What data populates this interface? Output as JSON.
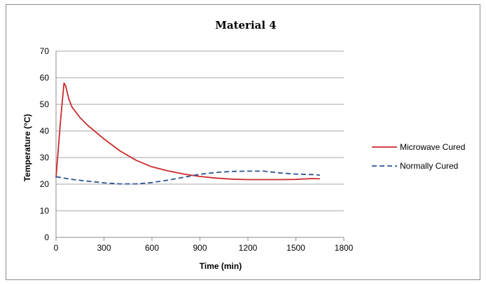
{
  "chart_data": {
    "type": "line",
    "title": "Material 4",
    "xlabel": "Time (min)",
    "ylabel": "Temperature (°C)",
    "xlim": [
      0,
      1800
    ],
    "ylim": [
      0,
      70
    ],
    "x_ticks": [
      0,
      300,
      600,
      900,
      1200,
      1500,
      1800
    ],
    "y_ticks": [
      0,
      10,
      20,
      30,
      40,
      50,
      60,
      70
    ],
    "grid": "horizontal",
    "legend_position": "right",
    "series": [
      {
        "name": "Microwave Cured",
        "color": "#cc2a2a",
        "style": "solid",
        "x": [
          0,
          30,
          50,
          60,
          80,
          100,
          150,
          200,
          300,
          400,
          500,
          600,
          700,
          800,
          900,
          1000,
          1100,
          1200,
          1300,
          1400,
          1500,
          1600,
          1650
        ],
        "y": [
          22.5,
          45,
          58,
          57,
          52,
          49,
          45,
          42,
          37,
          32.5,
          29,
          26.5,
          25,
          23.8,
          22.9,
          22.3,
          21.9,
          21.7,
          21.7,
          21.7,
          21.8,
          22.1,
          22.0
        ]
      },
      {
        "name": "Normally Cured",
        "color": "#2f5597",
        "style": "dashed",
        "x": [
          0,
          100,
          200,
          300,
          400,
          500,
          600,
          700,
          800,
          900,
          1000,
          1100,
          1200,
          1300,
          1400,
          1500,
          1600,
          1650
        ],
        "y": [
          22.8,
          21.8,
          21.1,
          20.5,
          20.1,
          20.1,
          20.6,
          21.5,
          22.6,
          23.7,
          24.4,
          24.8,
          24.9,
          24.9,
          24.2,
          23.8,
          23.6,
          23.4
        ]
      }
    ]
  }
}
